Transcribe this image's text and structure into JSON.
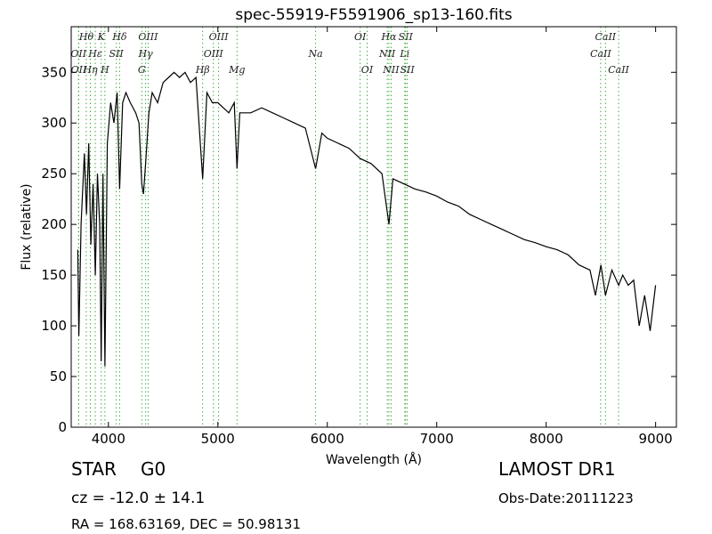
{
  "chart_data": {
    "type": "line",
    "title": "spec-55919-F5591906_sp13-160.fits",
    "x_label": "Wavelength (Å)",
    "y_label": "Flux (relative)",
    "xlim": [
      3660,
      9190
    ],
    "ylim": [
      0,
      395
    ],
    "xticks": [
      4000,
      5000,
      6000,
      7000,
      8000,
      9000
    ],
    "yticks": [
      0,
      50,
      100,
      150,
      200,
      250,
      300,
      350
    ],
    "series": [
      {
        "name": "flux",
        "color": "#000000",
        "x": [
          3720,
          3730,
          3750,
          3780,
          3800,
          3820,
          3840,
          3860,
          3880,
          3900,
          3920,
          3934,
          3950,
          3968,
          3990,
          4020,
          4050,
          4080,
          4102,
          4130,
          4160,
          4200,
          4250,
          4280,
          4305,
          4320,
          4340,
          4370,
          4400,
          4450,
          4500,
          4550,
          4600,
          4650,
          4700,
          4750,
          4800,
          4861,
          4900,
          4950,
          5000,
          5050,
          5100,
          5150,
          5175,
          5200,
          5300,
          5400,
          5500,
          5600,
          5700,
          5800,
          5893,
          5950,
          6000,
          6100,
          6200,
          6300,
          6400,
          6500,
          6563,
          6600,
          6700,
          6800,
          6900,
          7000,
          7100,
          7200,
          7300,
          7400,
          7500,
          7600,
          7700,
          7800,
          7900,
          8000,
          8100,
          8200,
          8300,
          8400,
          8450,
          8500,
          8542,
          8600,
          8662,
          8700,
          8750,
          8800,
          8850,
          8900,
          8950,
          9000
        ],
        "values": [
          175,
          90,
          200,
          270,
          210,
          280,
          180,
          240,
          150,
          250,
          200,
          65,
          250,
          60,
          280,
          320,
          300,
          330,
          235,
          320,
          330,
          320,
          310,
          300,
          240,
          230,
          260,
          310,
          330,
          320,
          340,
          345,
          350,
          345,
          350,
          340,
          345,
          245,
          330,
          320,
          320,
          315,
          310,
          320,
          255,
          310,
          310,
          315,
          310,
          305,
          300,
          295,
          255,
          290,
          285,
          280,
          275,
          265,
          260,
          250,
          200,
          245,
          240,
          235,
          232,
          228,
          222,
          218,
          210,
          205,
          200,
          195,
          190,
          185,
          182,
          178,
          175,
          170,
          160,
          155,
          130,
          160,
          130,
          155,
          140,
          150,
          140,
          145,
          100,
          130,
          95,
          140
        ]
      }
    ],
    "line_color": "#44aa44",
    "spectral_lines": [
      [
        {
          "label": "Hθ",
          "x": 3798
        },
        {
          "label": "K",
          "x": 3934
        },
        {
          "label": "Hδ",
          "x": 4102
        },
        {
          "label": "OIII",
          "x": 4363
        },
        {
          "label": "OIII",
          "x": 5007
        },
        {
          "label": "OI",
          "x": 6300
        },
        {
          "label": "Hα",
          "x": 6563
        },
        {
          "label": "SII",
          "x": 6716
        },
        {
          "label": "CaII",
          "x": 8542
        }
      ],
      [
        {
          "label": "OII",
          "x": 3727
        },
        {
          "label": "Hε",
          "x": 3880
        },
        {
          "label": "SII",
          "x": 4072
        },
        {
          "label": "Hγ",
          "x": 4340
        },
        {
          "label": "OIII",
          "x": 4959
        },
        {
          "label": "Na",
          "x": 5893
        },
        {
          "label": "NII",
          "x": 6548
        },
        {
          "label": "Li",
          "x": 6708
        },
        {
          "label": "CaII",
          "x": 8498
        }
      ],
      [
        {
          "label": "OII",
          "x": 3729
        },
        {
          "label": "Hη",
          "x": 3835
        },
        {
          "label": "H",
          "x": 3968
        },
        {
          "label": "G",
          "x": 4305
        },
        {
          "label": "Hβ",
          "x": 4861
        },
        {
          "label": "Mg",
          "x": 5175
        },
        {
          "label": "OI",
          "x": 6364
        },
        {
          "label": "NII",
          "x": 6583
        },
        {
          "label": "SII",
          "x": 6731
        },
        {
          "label": "CaII",
          "x": 8662
        }
      ]
    ],
    "object_class": "STAR",
    "subclass": "G0",
    "redshift": "cz = -12.0 ± 14.1",
    "coordinates": "RA = 168.63169, DEC = 50.98131",
    "survey": "LAMOST DR1",
    "obs_date": "Obs-Date:20111223"
  }
}
